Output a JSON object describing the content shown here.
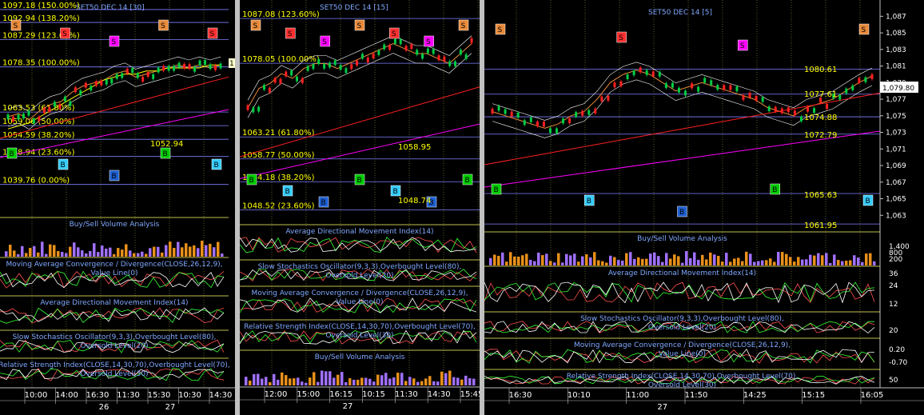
{
  "colors": {
    "bg": "#000000",
    "grid": "#5a5a2a",
    "fib": "#c8c8ff",
    "fib_label": "#ffff00",
    "title": "#7fa8ff",
    "up": "#00cc44",
    "down": "#ff2020",
    "magenta": "#ff00ff",
    "orange": "#e88a3a",
    "yellow": "#ffff00",
    "cyan": "#33ccff",
    "green": "#00cc00",
    "white": "#ffffff",
    "red": "#ff3030",
    "axis": "#c0c0c0"
  },
  "icons": {
    "sell_marker": "S",
    "buy_marker": "B"
  },
  "panels": [
    {
      "id": "left",
      "title": "SET50 DEC 14   [30]",
      "fib_labels": [
        "1097.18 (150.00%)",
        "1092.94 (138.20%)",
        "1087.29 (123.60%)",
        "1078.35 (100.00%)",
        "1063.53 (61.80%)",
        "1059.06 (50.00%)",
        "1054.59 (38.20%)",
        "1048.94 (23.60%)",
        "1039.76 (0.00%)"
      ],
      "price_note": "1052.94",
      "right_tag": "1",
      "indicators": [
        "Buy/Sell Volume Analysis",
        "Moving Average Convergence / Divergence(CLOSE,26,12,9),Value Line(0)",
        "Average Directional Movement Index(14)",
        "Slow Stochastics Oscillator(9,3,3),Overbought Level(80),Oversold Level(20)",
        "Relative Strength Index(CLOSE,14,30,70),Overbought Level(70),Oversold Level(30)"
      ],
      "time_ticks": [
        "10:00",
        "14:00",
        "16:30",
        "11:30",
        "15:30",
        "10:30",
        "14:30"
      ],
      "date_ticks": [
        "26",
        "27"
      ]
    },
    {
      "id": "middle",
      "title": "SET50 DEC 14   [15]",
      "fib_labels": [
        "1087.08 (123.60%)",
        "1078.05 (100.00%)",
        "1063.21 (61.80%)",
        "1058.77 (50.00%)",
        "1054.18 (38.20%)",
        "1048.52 (23.60%)"
      ],
      "price_notes": [
        "1058.95",
        "1048.74"
      ],
      "indicators": [
        "Average Directional Movement Index(14)",
        "Slow Stochastics Oscillator(9,3,3),Overbought Level(80),Oversold Level(20)",
        "Moving Average Convergence / Divergence(CLOSE,26,12,9),Value Line(0)",
        "Relative Strength Index(CLOSE,14,30,70),Overbought Level(70),Oversold Level(30)",
        "Buy/Sell Volume Analysis"
      ],
      "time_ticks": [
        "12:00",
        "15:00",
        "16:15",
        "10:15",
        "11:30",
        "14:30",
        "15:45"
      ],
      "date_ticks": [
        "27"
      ]
    },
    {
      "id": "right",
      "title": "SET50 DEC 14   [5]",
      "price_notes": [
        "1080.61",
        "1077.61",
        "1074.88",
        "1072.79",
        "1065.63",
        "1061.95"
      ],
      "last_price": "1,079.80",
      "price_axis": [
        "1,087",
        "1,085",
        "1,083",
        "1,081",
        "1,079",
        "1,077",
        "1,075",
        "1,073",
        "1,071",
        "1,069",
        "1,067",
        "1,065",
        "1,063"
      ],
      "volume_axis": [
        "1,400",
        "800",
        "200"
      ],
      "adx_axis": [
        "36",
        "24",
        "12"
      ],
      "stoch_axis": [
        "20"
      ],
      "macd_axis": [
        "0.20",
        "-0.70"
      ],
      "rsi_axis": [
        "50"
      ],
      "indicators": [
        "Buy/Sell Volume Analysis",
        "Average Directional Movement Index(14)",
        "Slow Stochastics Oscillator(9,3,3),Overbought Level(80),Oversold Level(20)",
        "Moving Average Convergence / Divergence(CLOSE,26,12,9),Value Line(0)",
        "Relative Strength Index(CLOSE,14,30,70),Overbought Level(70),Oversold Level(30)"
      ],
      "time_ticks": [
        "16:30",
        "10:10",
        "11:00",
        "11:50",
        "14:25",
        "15:15",
        "16:05"
      ],
      "date_ticks": [
        "27"
      ]
    }
  ],
  "chart_data": [
    {
      "type": "line",
      "title": "SET50 DEC 14   [30]",
      "ylim": [
        1036,
        1099
      ],
      "series": [
        {
          "values": [
            1062,
            1063,
            1061,
            1064,
            1066,
            1067,
            1070,
            1072,
            1073,
            1074,
            1076,
            1077,
            1075,
            1076,
            1077,
            1078,
            1079,
            1078,
            1079,
            1078,
            1079
          ]
        },
        {
          "values": [
            1058,
            1059,
            1060,
            1062,
            1064,
            1066,
            1068,
            1070,
            1072,
            1074,
            1075,
            1076,
            1076,
            1077,
            1077,
            1078,
            1078,
            1078,
            1078,
            1079,
            1079
          ]
        }
      ],
      "sell_markers": 5,
      "buy_markers": 5
    },
    {
      "type": "line",
      "title": "SET50 DEC 14   [15]",
      "ylim": [
        1046,
        1090
      ],
      "series": [
        {
          "values": [
            1069,
            1073,
            1074,
            1076,
            1075,
            1077,
            1078,
            1078,
            1077,
            1078,
            1079,
            1080,
            1081,
            1082,
            1081,
            1080,
            1080,
            1079,
            1078,
            1080,
            1082
          ]
        }
      ],
      "sell_markers": 7,
      "buy_markers": 7
    },
    {
      "type": "line",
      "title": "SET50 DEC 14   [5]",
      "ylim": [
        1061,
        1088
      ],
      "series": [
        {
          "values": [
            1075.5,
            1075,
            1074.5,
            1074,
            1073.5,
            1074,
            1075,
            1075.5,
            1077,
            1079,
            1080,
            1080.5,
            1080,
            1079,
            1078,
            1078.5,
            1079,
            1078.5,
            1078,
            1077.5,
            1077,
            1076,
            1075.5,
            1075,
            1076,
            1076.5,
            1077,
            1078,
            1079,
            1079.8
          ]
        }
      ],
      "last": 1079.8,
      "sell_markers": 4,
      "buy_markers": 5
    }
  ]
}
